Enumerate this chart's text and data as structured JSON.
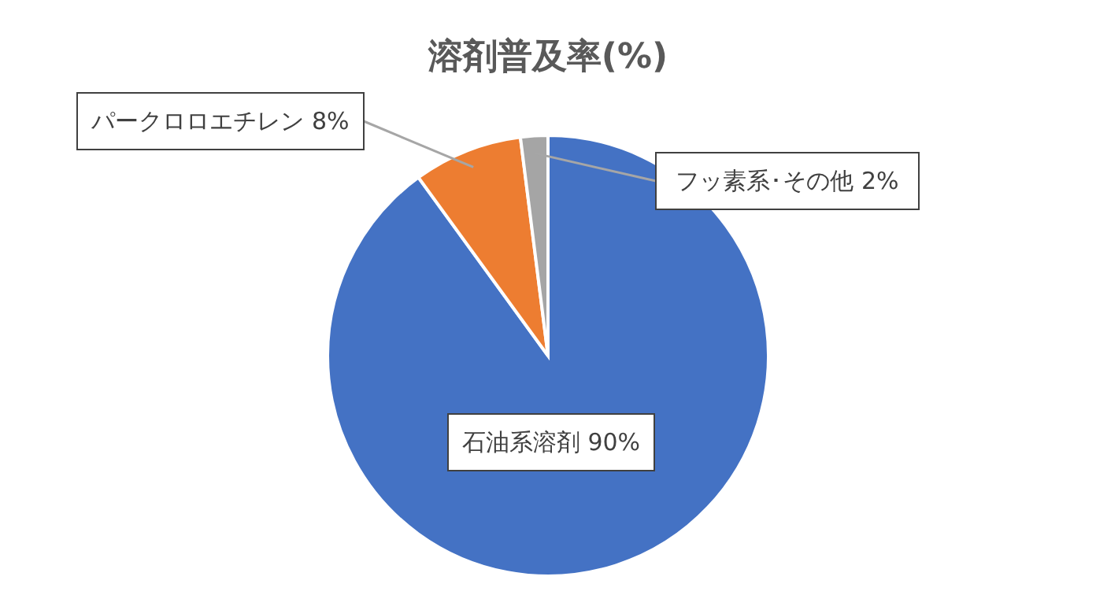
{
  "chart_data": {
    "type": "pie",
    "title": "溶剤普及率(%)",
    "categories": [
      "石油系溶剤",
      "パークロロエチレン",
      "フッ素系･その他"
    ],
    "values": [
      90,
      8,
      2
    ],
    "colors": [
      "#4472c4",
      "#ed7d31",
      "#a5a5a5"
    ],
    "value_labels": [
      "90%",
      "8%",
      "2%"
    ]
  }
}
